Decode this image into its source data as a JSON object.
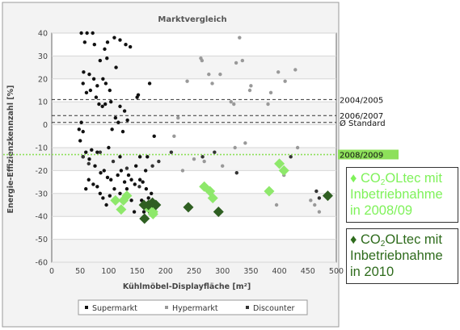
{
  "chart_data": {
    "type": "scatter",
    "title": "Marktvergleich",
    "xlabel": "Kühlmöbel-Displayfläche [m²]",
    "ylabel": "Energie-Effizienzkennzahl [%]",
    "xlim": [
      0,
      500
    ],
    "ylim": [
      -60,
      40
    ],
    "xticks": [
      "0",
      "50",
      "100",
      "150",
      "200",
      "250",
      "300",
      "350",
      "400",
      "450",
      "500"
    ],
    "yticks": [
      "40",
      "30",
      "20",
      "10",
      "0",
      "-10",
      "-20",
      "-30",
      "-40",
      "-50",
      "-60"
    ],
    "grid": "horizontal",
    "legend_position": "bottom",
    "reference_lines": [
      {
        "label": "2004/2005",
        "y": 11,
        "style": "dashed",
        "color": "#333333"
      },
      {
        "label": "2006/2007",
        "y": 4,
        "style": "dashed",
        "color": "#333333"
      },
      {
        "label": "Ø Standard",
        "y": 1,
        "style": "dashed",
        "color": "#333333"
      },
      {
        "label": "2008/2009",
        "y": -13,
        "style": "dotted",
        "color": "#8de05a",
        "highlight": true
      }
    ],
    "series": [
      {
        "name": "Supermarkt",
        "color": "#111111",
        "marker": "circle",
        "points": [
          [
            52,
            40
          ],
          [
            62,
            40
          ],
          [
            72,
            40
          ],
          [
            58,
            36
          ],
          [
            75,
            35
          ],
          [
            98,
            36
          ],
          [
            110,
            38
          ],
          [
            120,
            37
          ],
          [
            130,
            35
          ],
          [
            138,
            34
          ],
          [
            85,
            28
          ],
          [
            93,
            33
          ],
          [
            97,
            29
          ],
          [
            113,
            25
          ],
          [
            56,
            23
          ],
          [
            66,
            22
          ],
          [
            74,
            20
          ],
          [
            80,
            17
          ],
          [
            90,
            20
          ],
          [
            95,
            18
          ],
          [
            102,
            15
          ],
          [
            78,
            12
          ],
          [
            83,
            9
          ],
          [
            89,
            8
          ],
          [
            94,
            9
          ],
          [
            55,
            18
          ],
          [
            61,
            14
          ],
          [
            68,
            15
          ],
          [
            104,
            10
          ],
          [
            112,
            3
          ],
          [
            120,
            8
          ],
          [
            128,
            6
          ],
          [
            133,
            2
          ],
          [
            106,
            -2
          ],
          [
            117,
            1
          ],
          [
            125,
            -3
          ],
          [
            52,
            1
          ],
          [
            55,
            -3
          ],
          [
            50,
            -7
          ],
          [
            48,
            -2
          ],
          [
            60,
            -12
          ],
          [
            66,
            -15
          ],
          [
            70,
            -11
          ],
          [
            76,
            -18
          ],
          [
            80,
            -12
          ],
          [
            86,
            -21
          ],
          [
            92,
            -20
          ],
          [
            98,
            -23
          ],
          [
            104,
            -24
          ],
          [
            65,
            -24
          ],
          [
            73,
            -26
          ],
          [
            80,
            -27
          ],
          [
            85,
            -30
          ],
          [
            90,
            -32
          ],
          [
            96,
            -35
          ],
          [
            102,
            -31
          ],
          [
            110,
            -28
          ],
          [
            116,
            -22
          ],
          [
            122,
            -20
          ],
          [
            128,
            -25
          ],
          [
            132,
            -28
          ],
          [
            120,
            -30
          ],
          [
            126,
            -32
          ],
          [
            135,
            -22
          ],
          [
            140,
            -24
          ],
          [
            146,
            -26
          ],
          [
            155,
            -24
          ],
          [
            160,
            -25
          ],
          [
            166,
            -28
          ],
          [
            170,
            -32
          ],
          [
            175,
            -30
          ],
          [
            180,
            -34
          ],
          [
            165,
            -20
          ],
          [
            155,
            -14
          ],
          [
            148,
            -18
          ],
          [
            145,
            -38
          ],
          [
            172,
            -38
          ],
          [
            158,
            -33
          ],
          [
            140,
            -33
          ],
          [
            112,
            -34
          ],
          [
            150,
            12
          ],
          [
            152,
            13
          ],
          [
            172,
            18
          ],
          [
            180,
            -5
          ],
          [
            168,
            -14
          ],
          [
            55,
            -14
          ],
          [
            120,
            -14
          ],
          [
            100,
            -10
          ],
          [
            60,
            -28
          ],
          [
            162,
            -38
          ]
        ]
      },
      {
        "name": "Hypermarkt",
        "color": "#999999",
        "marker": "circle",
        "points": [
          [
            215,
            -5
          ],
          [
            222,
            3
          ],
          [
            238,
            19
          ],
          [
            262,
            29
          ],
          [
            264,
            28
          ],
          [
            276,
            22
          ],
          [
            282,
            18
          ],
          [
            296,
            22
          ],
          [
            315,
            10
          ],
          [
            320,
            9
          ],
          [
            324,
            27
          ],
          [
            330,
            38
          ],
          [
            335,
            28
          ],
          [
            348,
            15
          ],
          [
            350,
            17
          ],
          [
            380,
            9
          ],
          [
            385,
            14
          ],
          [
            398,
            23
          ],
          [
            402,
            -17
          ],
          [
            410,
            19
          ],
          [
            428,
            24
          ],
          [
            432,
            -10
          ],
          [
            322,
            -10
          ],
          [
            340,
            -8
          ],
          [
            408,
            -22
          ],
          [
            470,
            -38
          ],
          [
            455,
            -33
          ],
          [
            462,
            -35
          ],
          [
            268,
            -16
          ],
          [
            300,
            -18
          ],
          [
            230,
            -20
          ],
          [
            250,
            -15
          ],
          [
            395,
            -35
          ]
        ]
      },
      {
        "name": "Discounter",
        "color": "#333333",
        "marker": "circle",
        "points": [
          [
            55,
            -14
          ],
          [
            65,
            -17
          ],
          [
            85,
            -12
          ],
          [
            108,
            -16
          ],
          [
            132,
            -19
          ],
          [
            154,
            -27
          ],
          [
            177,
            -18
          ],
          [
            188,
            -16
          ],
          [
            210,
            -12
          ],
          [
            265,
            -14
          ],
          [
            286,
            -12
          ],
          [
            325,
            -21
          ],
          [
            420,
            -14
          ],
          [
            465,
            -29
          ],
          [
            470,
            -32
          ]
        ]
      },
      {
        "name": "CO2OLtec mit Inbetriebnahme in 2008/09",
        "color": "#8ee86b",
        "marker": "diamond",
        "points": [
          [
            112,
            -33
          ],
          [
            122,
            -37
          ],
          [
            126,
            -33
          ],
          [
            132,
            -31
          ],
          [
            168,
            -36
          ],
          [
            178,
            -38
          ],
          [
            178,
            -39
          ],
          [
            268,
            -27
          ],
          [
            278,
            -29
          ],
          [
            283,
            -32
          ],
          [
            382,
            -29
          ],
          [
            400,
            -17
          ],
          [
            408,
            -20
          ]
        ]
      },
      {
        "name": "CO2OLtec mit Inbetriebnahme in 2010",
        "color": "#2f5f22",
        "marker": "diamond",
        "points": [
          [
            163,
            -41
          ],
          [
            162,
            -35
          ],
          [
            170,
            -35
          ],
          [
            177,
            -34
          ],
          [
            183,
            -35
          ],
          [
            240,
            -36
          ],
          [
            293,
            -38
          ],
          [
            485,
            -31
          ]
        ]
      }
    ]
  },
  "legend": {
    "items": [
      {
        "label": "Supermarkt",
        "color": "#111111"
      },
      {
        "label": "Hypermarkt",
        "color": "#999999"
      },
      {
        "label": "Discounter",
        "color": "#333333"
      }
    ]
  },
  "callouts": {
    "light": {
      "bullet": "♦",
      "pre": "CO",
      "sub": "2",
      "post": "OLtec mit",
      "line2": "Inbetriebnahme",
      "line3": "in 2008/09",
      "color": "#7ff25a"
    },
    "dark": {
      "bullet": "♦",
      "pre": "CO",
      "sub": "2",
      "post": "OLtec mit",
      "line2": "Inbetriebnahme",
      "line3": "in 2010",
      "color": "#2e6b1c"
    }
  }
}
